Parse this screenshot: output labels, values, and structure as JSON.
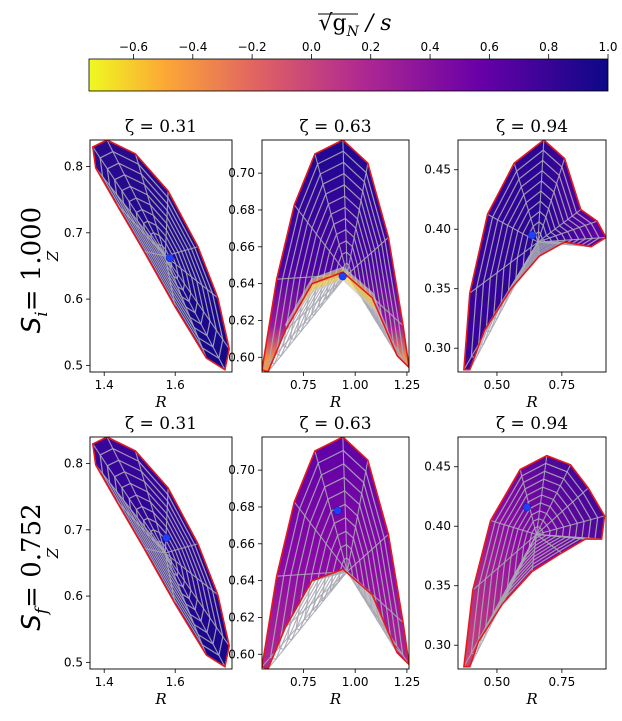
{
  "colorbar": {
    "label": "√g_N / s",
    "ticks": [
      "−0.6",
      "−0.4",
      "−0.2",
      "0.0",
      "0.2",
      "0.4",
      "0.6",
      "0.8",
      "1.0"
    ],
    "tick_values": [
      -0.6,
      -0.4,
      -0.2,
      0.0,
      0.2,
      0.4,
      0.6,
      0.8,
      1.0
    ],
    "range": [
      -0.75,
      1.0
    ],
    "colormap": "plasma"
  },
  "rows": [
    {
      "label_main": "S",
      "label_sub": "i",
      "label_value": "= 1.000"
    },
    {
      "label_main": "S",
      "label_sub": "f",
      "label_value": "= 0.752"
    }
  ],
  "chart_data": [
    {
      "type": "heatmap",
      "title": "ζ = 0.31",
      "xlabel": "R",
      "ylabel": "Z",
      "xlim": [
        1.36,
        1.76
      ],
      "ylim": [
        0.49,
        0.84
      ],
      "xticks": [
        "1.4",
        "1.6"
      ],
      "xtick_values": [
        1.4,
        1.6
      ],
      "yticks": [
        "0.5",
        "0.6",
        "0.7",
        "0.8"
      ],
      "ytick_values": [
        0.5,
        0.6,
        0.7,
        0.8
      ],
      "axis_point": [
        1.585,
        0.662
      ]
    },
    {
      "type": "heatmap",
      "title": "ζ = 0.63",
      "xlabel": "R",
      "ylabel": "",
      "xlim": [
        0.55,
        1.26
      ],
      "ylim": [
        0.592,
        0.718
      ],
      "xticks": [
        "0.75",
        "1.00",
        "1.25"
      ],
      "xtick_values": [
        0.75,
        1.0,
        1.25
      ],
      "yticks": [
        "0.60",
        "0.62",
        "0.64",
        "0.66",
        "0.68",
        "0.70"
      ],
      "ytick_values": [
        0.6,
        0.62,
        0.64,
        0.66,
        0.68,
        0.7
      ],
      "axis_point": [
        0.94,
        0.644
      ]
    },
    {
      "type": "heatmap",
      "title": "ζ = 0.94",
      "xlabel": "R",
      "ylabel": "",
      "xlim": [
        0.35,
        0.92
      ],
      "ylim": [
        0.28,
        0.475
      ],
      "xticks": [
        "0.50",
        "0.75"
      ],
      "xtick_values": [
        0.5,
        0.75
      ],
      "yticks": [
        "0.30",
        "0.35",
        "0.40",
        "0.45"
      ],
      "ytick_values": [
        0.3,
        0.35,
        0.4,
        0.45
      ],
      "axis_point": [
        0.635,
        0.395
      ]
    },
    {
      "type": "heatmap",
      "title": "ζ = 0.31",
      "xlabel": "R",
      "ylabel": "Z",
      "xlim": [
        1.36,
        1.76
      ],
      "ylim": [
        0.49,
        0.84
      ],
      "xticks": [
        "1.4",
        "1.6"
      ],
      "xtick_values": [
        1.4,
        1.6
      ],
      "yticks": [
        "0.5",
        "0.6",
        "0.7",
        "0.8"
      ],
      "ytick_values": [
        0.5,
        0.6,
        0.7,
        0.8
      ],
      "axis_point": [
        1.575,
        0.688
      ]
    },
    {
      "type": "heatmap",
      "title": "ζ = 0.63",
      "xlabel": "R",
      "ylabel": "",
      "xlim": [
        0.55,
        1.26
      ],
      "ylim": [
        0.592,
        0.718
      ],
      "xticks": [
        "0.75",
        "1.00",
        "1.25"
      ],
      "xtick_values": [
        0.75,
        1.0,
        1.25
      ],
      "yticks": [
        "0.60",
        "0.62",
        "0.64",
        "0.66",
        "0.68",
        "0.70"
      ],
      "ytick_values": [
        0.6,
        0.62,
        0.64,
        0.66,
        0.68,
        0.7
      ],
      "axis_point": [
        0.915,
        0.678
      ]
    },
    {
      "type": "heatmap",
      "title": "ζ = 0.94",
      "xlabel": "R",
      "ylabel": "",
      "xlim": [
        0.35,
        0.92
      ],
      "ylim": [
        0.28,
        0.475
      ],
      "xticks": [
        "0.50",
        "0.75"
      ],
      "xtick_values": [
        0.5,
        0.75
      ],
      "yticks": [
        "0.30",
        "0.35",
        "0.40",
        "0.45"
      ],
      "ytick_values": [
        0.3,
        0.35,
        0.4,
        0.45
      ],
      "axis_point": [
        0.615,
        0.416
      ]
    }
  ]
}
